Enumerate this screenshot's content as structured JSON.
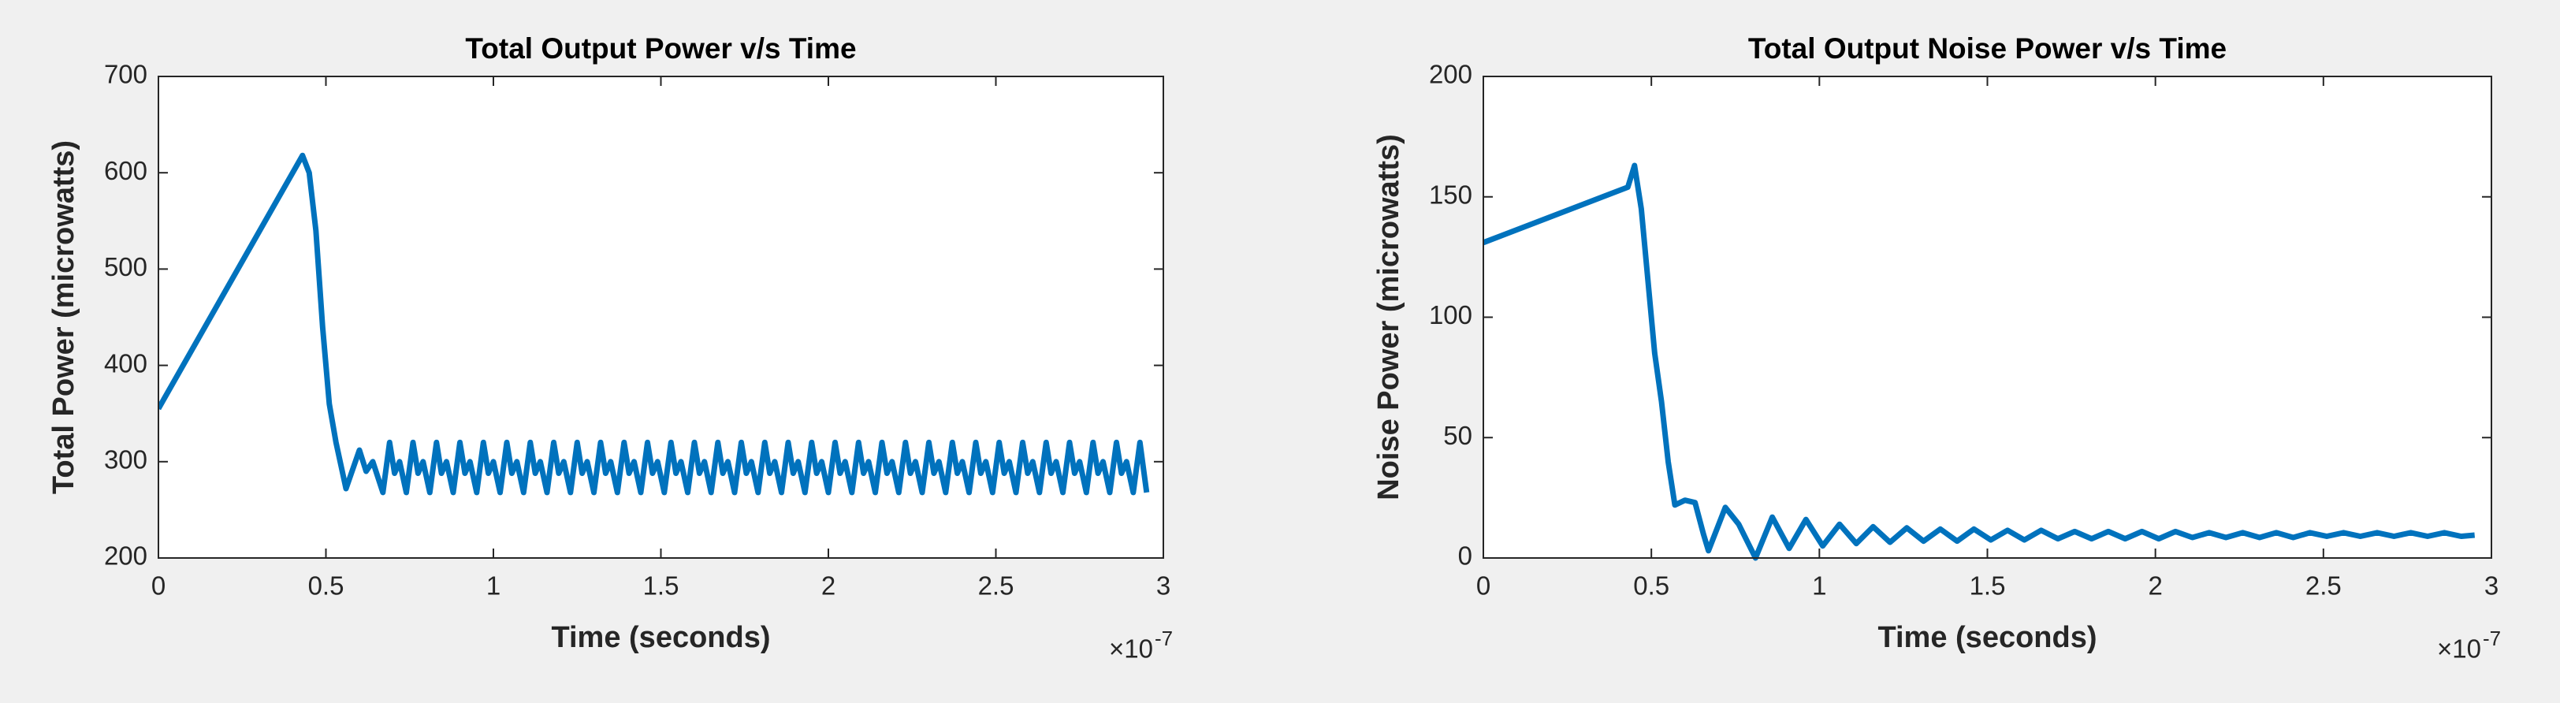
{
  "chart_data": [
    {
      "type": "line",
      "title": "Total Output Power v/s Time",
      "x_label": "Time (seconds)",
      "y_label": "Total Power (microwatts)",
      "x_multiplier": "×10",
      "x_exponent": "-7",
      "xlim": [
        0,
        3
      ],
      "xticks": [
        0,
        0.5,
        1,
        1.5,
        2,
        2.5,
        3
      ],
      "ylim": [
        200,
        700
      ],
      "yticks": [
        200,
        300,
        400,
        500,
        600,
        700
      ],
      "x": [
        0,
        0.43,
        0.45,
        0.47,
        0.49,
        0.51,
        0.53,
        0.56,
        0.6,
        0.62,
        0.64,
        0.67,
        0.69,
        0.705,
        0.72,
        0.74,
        0.76,
        0.775,
        0.79,
        0.81,
        0.83,
        0.845,
        0.86,
        0.88,
        0.9,
        0.915,
        0.93,
        0.95,
        0.97,
        0.985,
        1.0,
        1.02,
        1.04,
        1.055,
        1.07,
        1.09,
        1.11,
        1.125,
        1.14,
        1.16,
        1.18,
        1.195,
        1.21,
        1.23,
        1.25,
        1.265,
        1.28,
        1.3,
        1.32,
        1.335,
        1.35,
        1.37,
        1.39,
        1.405,
        1.42,
        1.44,
        1.46,
        1.475,
        1.49,
        1.51,
        1.53,
        1.545,
        1.56,
        1.58,
        1.6,
        1.615,
        1.63,
        1.65,
        1.67,
        1.685,
        1.7,
        1.72,
        1.74,
        1.755,
        1.77,
        1.79,
        1.81,
        1.825,
        1.84,
        1.86,
        1.88,
        1.895,
        1.91,
        1.93,
        1.95,
        1.965,
        1.98,
        2.0,
        2.02,
        2.035,
        2.05,
        2.07,
        2.09,
        2.105,
        2.12,
        2.14,
        2.16,
        2.175,
        2.19,
        2.21,
        2.23,
        2.245,
        2.26,
        2.28,
        2.3,
        2.315,
        2.33,
        2.35,
        2.37,
        2.385,
        2.4,
        2.42,
        2.44,
        2.455,
        2.47,
        2.49,
        2.51,
        2.525,
        2.54,
        2.56,
        2.58,
        2.595,
        2.61,
        2.63,
        2.65,
        2.665,
        2.68,
        2.7,
        2.72,
        2.735,
        2.75,
        2.77,
        2.79,
        2.805,
        2.82,
        2.84,
        2.86,
        2.875,
        2.89,
        2.91,
        2.93,
        2.95
      ],
      "series": [
        {
          "name": "Total Power",
          "color": "#0072bd",
          "values": [
            355,
            618,
            600,
            540,
            440,
            360,
            320,
            272,
            312,
            290,
            300,
            268,
            320,
            288,
            300,
            268,
            320,
            288,
            300,
            268,
            320,
            288,
            300,
            268,
            320,
            288,
            300,
            268,
            320,
            288,
            300,
            268,
            320,
            288,
            300,
            268,
            320,
            288,
            300,
            268,
            320,
            288,
            300,
            268,
            320,
            288,
            300,
            268,
            320,
            288,
            300,
            268,
            320,
            288,
            300,
            268,
            320,
            288,
            300,
            268,
            320,
            288,
            300,
            268,
            320,
            288,
            300,
            268,
            320,
            288,
            300,
            268,
            320,
            288,
            300,
            268,
            320,
            288,
            300,
            268,
            320,
            288,
            300,
            268,
            320,
            288,
            300,
            268,
            320,
            288,
            300,
            268,
            320,
            288,
            300,
            268,
            320,
            288,
            300,
            268,
            320,
            288,
            300,
            268,
            320,
            288,
            300,
            268,
            320,
            288,
            300,
            268,
            320,
            288,
            300,
            268,
            320,
            288,
            300,
            268,
            320,
            288,
            300,
            268,
            320,
            288,
            300,
            268,
            320,
            288,
            300,
            268,
            320,
            288,
            300,
            268,
            320,
            288,
            300,
            268,
            320,
            268
          ]
        }
      ]
    },
    {
      "type": "line",
      "title": "Total Output Noise Power v/s Time",
      "x_label": "Time (seconds)",
      "y_label": "Noise Power (microwatts)",
      "x_multiplier": "×10",
      "x_exponent": "-7",
      "xlim": [
        0,
        3
      ],
      "xticks": [
        0,
        0.5,
        1,
        1.5,
        2,
        2.5,
        3
      ],
      "ylim": [
        0,
        200
      ],
      "yticks": [
        0,
        50,
        100,
        150,
        200
      ],
      "x": [
        0,
        0.43,
        0.45,
        0.47,
        0.49,
        0.51,
        0.53,
        0.55,
        0.57,
        0.6,
        0.63,
        0.655,
        0.67,
        0.72,
        0.76,
        0.81,
        0.86,
        0.91,
        0.96,
        1.01,
        1.06,
        1.11,
        1.16,
        1.21,
        1.26,
        1.31,
        1.36,
        1.41,
        1.46,
        1.51,
        1.56,
        1.61,
        1.66,
        1.71,
        1.76,
        1.81,
        1.86,
        1.91,
        1.96,
        2.01,
        2.06,
        2.11,
        2.16,
        2.21,
        2.26,
        2.31,
        2.36,
        2.41,
        2.46,
        2.51,
        2.56,
        2.61,
        2.66,
        2.71,
        2.76,
        2.81,
        2.86,
        2.91,
        2.95
      ],
      "series": [
        {
          "name": "Noise Power",
          "color": "#0072bd",
          "values": [
            131,
            154,
            163,
            145,
            115,
            85,
            65,
            40,
            22,
            24,
            23,
            10,
            3,
            21,
            14,
            0,
            17,
            4,
            16,
            5,
            14,
            6,
            13,
            6.5,
            12.5,
            7,
            12,
            7,
            12,
            7.5,
            11.5,
            7.5,
            11.5,
            8,
            11,
            8,
            11,
            8,
            11,
            8,
            11,
            8.5,
            10.5,
            8.5,
            10.5,
            8.5,
            10.5,
            8.5,
            10.5,
            9,
            10.5,
            9,
            10.5,
            9,
            10.5,
            9,
            10.5,
            9,
            9.5
          ]
        }
      ]
    }
  ]
}
